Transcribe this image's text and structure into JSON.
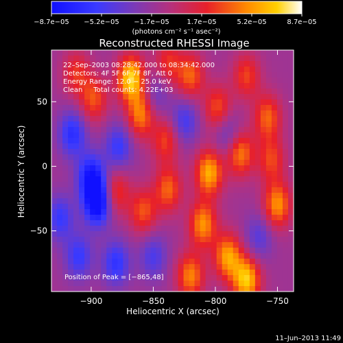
{
  "chart_data": {
    "type": "heatmap",
    "title": "Reconstructed RHESSI Image",
    "xlabel": "Heliocentric X (arcsec)",
    "ylabel": "Heliocentric Y (arcsec)",
    "xlim": [
      -932,
      -737
    ],
    "ylim": [
      -97,
      90
    ],
    "x_ticks": [
      -900,
      -850,
      -800,
      -750
    ],
    "x_tick_labels": [
      "−900",
      "−850",
      "−800",
      "−750"
    ],
    "y_ticks": [
      50,
      0,
      -50
    ],
    "y_tick_labels": [
      "50",
      "0",
      "−50"
    ],
    "colorbar": {
      "min": -8.7e-05,
      "max": 8.7e-05,
      "tick_labels": [
        "−8.7e−05",
        "−5.2e−05",
        "−1.7e−05",
        "1.7e−05",
        "5.2e−05",
        "8.7e−05"
      ],
      "units_label": "(photons cm⁻² s⁻¹ asec⁻²)"
    },
    "annotations": {
      "time_range": "22–Sep–2003 08:28:42.000 to 08:34:42.000",
      "detectors": "Detectors: 4F 5F 6F 7F 8F, Att 0",
      "energy_range": "Energy Range: 12.0 − 25.0 keV",
      "clean_counts": "Clean     Total counts: 4.22E+03",
      "peak_position": "Position of Peak = [−865,48]"
    },
    "peak": [
      -865,
      48
    ],
    "blobs": [
      {
        "x": -868,
        "y": 68,
        "v": 1.0
      },
      {
        "x": -860,
        "y": 40,
        "v": 0.7
      },
      {
        "x": -898,
        "y": 52,
        "v": 0.55
      },
      {
        "x": -912,
        "y": 72,
        "v": 0.45
      },
      {
        "x": -820,
        "y": 70,
        "v": 0.6
      },
      {
        "x": -798,
        "y": 45,
        "v": 0.55
      },
      {
        "x": -775,
        "y": 70,
        "v": 0.5
      },
      {
        "x": -758,
        "y": 38,
        "v": 0.6
      },
      {
        "x": -805,
        "y": -5,
        "v": 0.85
      },
      {
        "x": -780,
        "y": 10,
        "v": 0.7
      },
      {
        "x": -810,
        "y": -45,
        "v": 0.75
      },
      {
        "x": -790,
        "y": -70,
        "v": 0.8
      },
      {
        "x": -775,
        "y": -88,
        "v": 0.95
      },
      {
        "x": -838,
        "y": -18,
        "v": 0.6
      },
      {
        "x": -858,
        "y": -35,
        "v": 0.55
      },
      {
        "x": -820,
        "y": -85,
        "v": 0.7
      },
      {
        "x": -750,
        "y": -30,
        "v": 0.75
      },
      {
        "x": -755,
        "y": 5,
        "v": 0.5
      },
      {
        "x": -880,
        "y": -20,
        "v": 0.5
      },
      {
        "x": -840,
        "y": 20,
        "v": 0.5
      },
      {
        "x": -838,
        "y": 80,
        "v": 0.45
      },
      {
        "x": -900,
        "y": -8,
        "v": -0.75
      },
      {
        "x": -895,
        "y": -28,
        "v": -1.0
      },
      {
        "x": -915,
        "y": 25,
        "v": -0.6
      },
      {
        "x": -878,
        "y": 15,
        "v": -0.5
      },
      {
        "x": -880,
        "y": -75,
        "v": -0.55
      },
      {
        "x": -910,
        "y": -70,
        "v": -0.5
      },
      {
        "x": -825,
        "y": 35,
        "v": -0.45
      },
      {
        "x": -850,
        "y": -70,
        "v": -0.4
      },
      {
        "x": -790,
        "y": 25,
        "v": -0.35
      },
      {
        "x": -765,
        "y": -55,
        "v": -0.35
      },
      {
        "x": -848,
        "y": 55,
        "v": -0.3
      },
      {
        "x": -925,
        "y": -40,
        "v": -0.5
      }
    ]
  },
  "footer": {
    "timestamp": "11–Jun–2013 11:49"
  }
}
